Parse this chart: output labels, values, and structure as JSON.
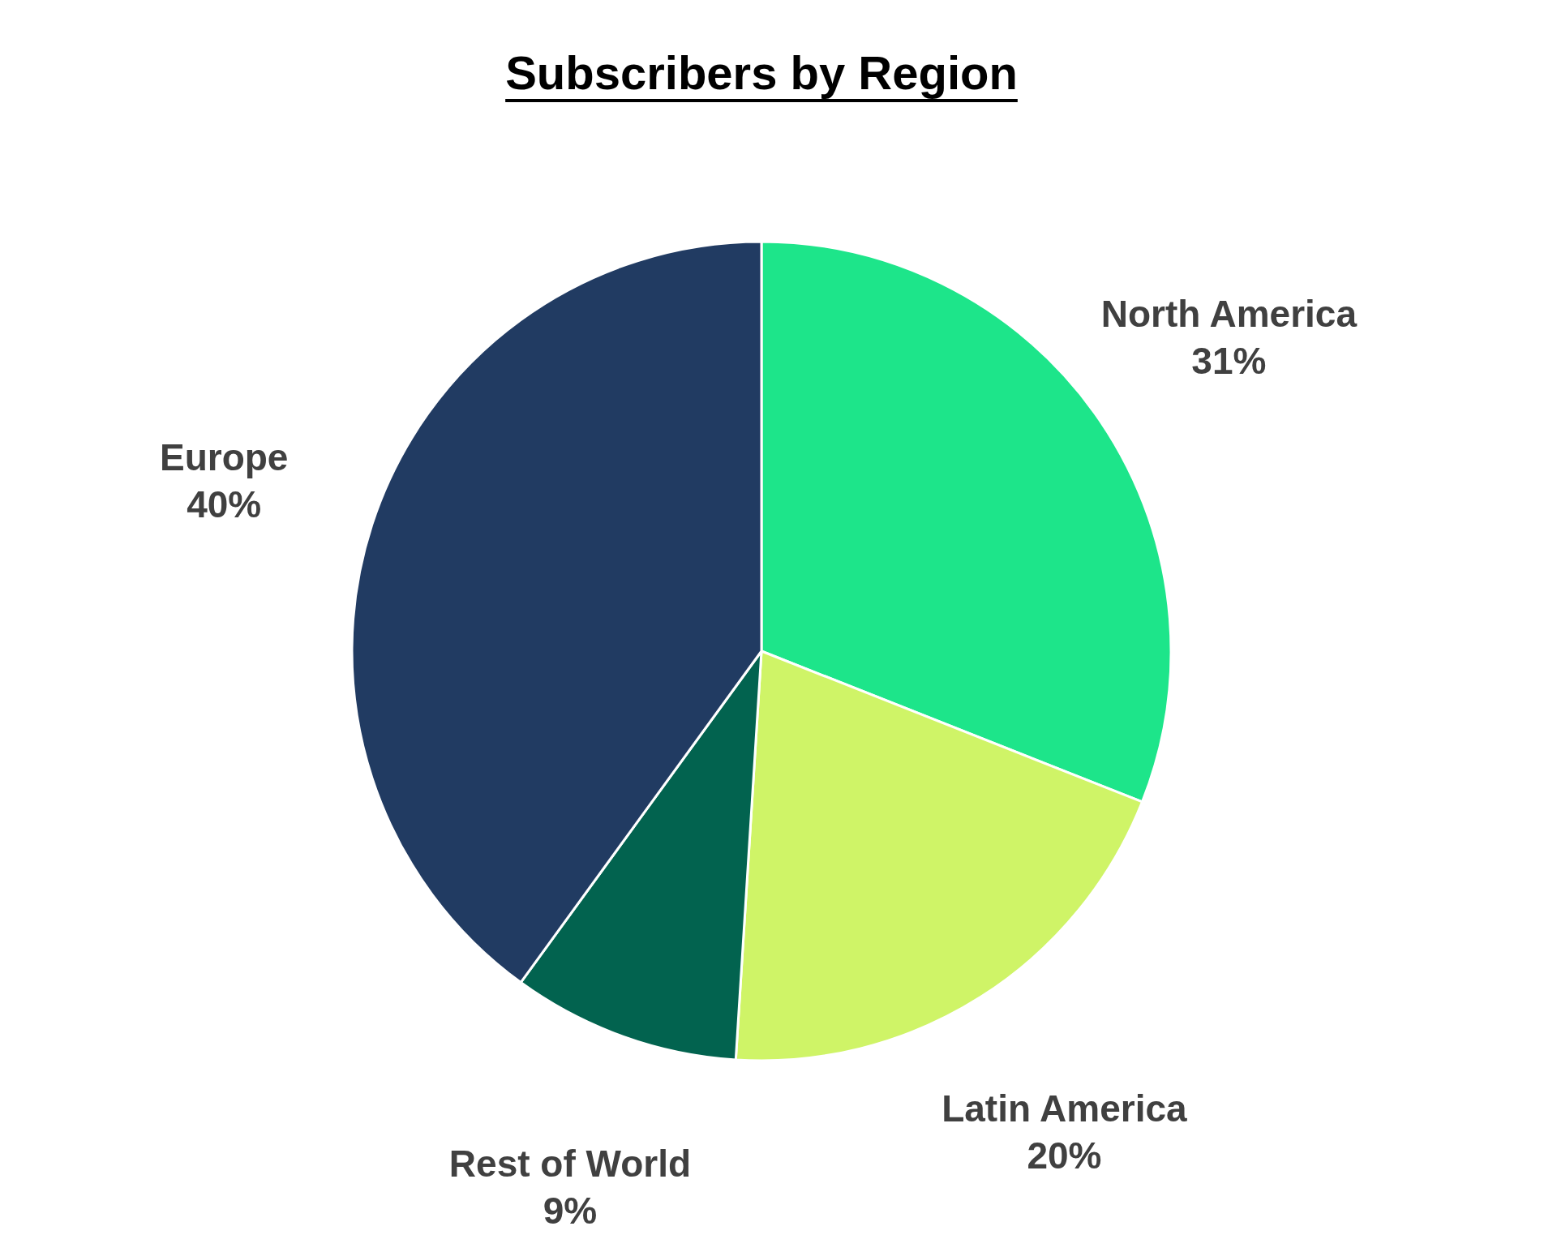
{
  "chart_data": {
    "type": "pie",
    "title": "Subscribers by Region",
    "categories": [
      "North America",
      "Latin America",
      "Rest of World",
      "Europe"
    ],
    "values": [
      31,
      20,
      9,
      40
    ],
    "value_labels": [
      "31%",
      "20%",
      "9%",
      "40%"
    ],
    "colors": [
      "#1de58a",
      "#cff467",
      "#02634f",
      "#213b62"
    ]
  }
}
